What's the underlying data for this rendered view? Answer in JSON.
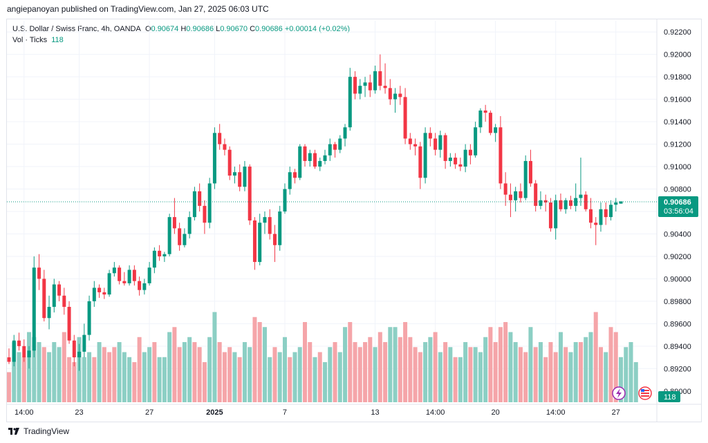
{
  "header": {
    "published": "angiepanoyan published on TradingView.com, Jan 27, 2025 06:03 UTC"
  },
  "legend": {
    "symbol": "U.S. Dollar / Swiss Franc, 4h, OANDA",
    "o_label": "O",
    "o": "0.90674",
    "h_label": "H",
    "h": "0.90686",
    "l_label": "L",
    "l": "0.90670",
    "c_label": "C",
    "c": "0.90686",
    "change": "+0.00014 (+0.02%)",
    "vol_label": "Vol · Ticks",
    "vol_value": "118"
  },
  "price_badge": {
    "price": "0.90686",
    "countdown": "03:56:04"
  },
  "volume_badge": "118",
  "footer": {
    "brand": "TradingView"
  },
  "colors": {
    "up": "#089981",
    "down": "#f23645",
    "up_vol": "#8ccfc4",
    "down_vol": "#f5a5a9",
    "grid": "#f0f3fa",
    "axis_text": "#131722"
  },
  "chart_data": {
    "type": "candlestick",
    "title": "U.S. Dollar / Swiss Franc, 4h, OANDA",
    "ylim": [
      0.889,
      0.923
    ],
    "y_ticks": [
      "0.92200",
      "0.92000",
      "0.91800",
      "0.91600",
      "0.91400",
      "0.91200",
      "0.91000",
      "0.90800",
      "0.90600",
      "0.90400",
      "0.90200",
      "0.90000",
      "0.89800",
      "0.89600",
      "0.89400",
      "0.89200",
      "0.89000"
    ],
    "x_ticks": [
      {
        "label": "14:00",
        "i": 3
      },
      {
        "label": "23",
        "i": 14
      },
      {
        "label": "27",
        "i": 28
      },
      {
        "label": "2025",
        "i": 41
      },
      {
        "label": "7",
        "i": 55
      },
      {
        "label": "13",
        "i": 73
      },
      {
        "label": "14:00",
        "i": 85
      },
      {
        "label": "20",
        "i": 97
      },
      {
        "label": "14:00",
        "i": 109
      },
      {
        "label": "27",
        "i": 121
      }
    ],
    "last_price": 0.90686,
    "ohlc": [
      [
        0.893,
        0.8938,
        0.8924,
        0.8926
      ],
      [
        0.8926,
        0.895,
        0.8922,
        0.8945
      ],
      [
        0.8945,
        0.8952,
        0.8936,
        0.894
      ],
      [
        0.894,
        0.8946,
        0.8926,
        0.893
      ],
      [
        0.893,
        0.894,
        0.892,
        0.8936
      ],
      [
        0.8936,
        0.902,
        0.893,
        0.901
      ],
      [
        0.901,
        0.9022,
        0.899,
        0.9
      ],
      [
        0.9,
        0.9008,
        0.8962,
        0.8965
      ],
      [
        0.8965,
        0.8985,
        0.8955,
        0.8975
      ],
      [
        0.8975,
        0.9,
        0.897,
        0.8995
      ],
      [
        0.8995,
        0.8998,
        0.898,
        0.8985
      ],
      [
        0.8985,
        0.8992,
        0.8968,
        0.8975
      ],
      [
        0.8975,
        0.898,
        0.8942,
        0.8945
      ],
      [
        0.8945,
        0.895,
        0.8922,
        0.893
      ],
      [
        0.893,
        0.8942,
        0.8918,
        0.8935
      ],
      [
        0.8935,
        0.896,
        0.893,
        0.895
      ],
      [
        0.895,
        0.8985,
        0.8945,
        0.898
      ],
      [
        0.898,
        0.8998,
        0.8975,
        0.8992
      ],
      [
        0.8992,
        0.8995,
        0.8983,
        0.8988
      ],
      [
        0.8988,
        0.8992,
        0.8982,
        0.8986
      ],
      [
        0.8986,
        0.9008,
        0.8984,
        0.9005
      ],
      [
        0.9005,
        0.9015,
        0.9002,
        0.901
      ],
      [
        0.901,
        0.9012,
        0.8995,
        0.8998
      ],
      [
        0.8998,
        0.9006,
        0.8994,
        0.8996
      ],
      [
        0.8996,
        0.9012,
        0.8994,
        0.9008
      ],
      [
        0.9008,
        0.9012,
        0.8994,
        0.8998
      ],
      [
        0.8998,
        0.9002,
        0.8985,
        0.899
      ],
      [
        0.899,
        0.9,
        0.8986,
        0.8996
      ],
      [
        0.8996,
        0.9015,
        0.8994,
        0.901
      ],
      [
        0.901,
        0.9028,
        0.9005,
        0.9025
      ],
      [
        0.9025,
        0.903,
        0.9016,
        0.902
      ],
      [
        0.902,
        0.9024,
        0.9015,
        0.9022
      ],
      [
        0.9022,
        0.9058,
        0.902,
        0.9055
      ],
      [
        0.9055,
        0.9072,
        0.904,
        0.9045
      ],
      [
        0.9045,
        0.905,
        0.9025,
        0.903
      ],
      [
        0.903,
        0.9045,
        0.9028,
        0.904
      ],
      [
        0.904,
        0.906,
        0.9036,
        0.9055
      ],
      [
        0.9055,
        0.9082,
        0.9052,
        0.9078
      ],
      [
        0.9078,
        0.9085,
        0.906,
        0.9065
      ],
      [
        0.9065,
        0.907,
        0.904,
        0.905
      ],
      [
        0.905,
        0.909,
        0.9045,
        0.9085
      ],
      [
        0.9085,
        0.9135,
        0.908,
        0.913
      ],
      [
        0.913,
        0.9138,
        0.9115,
        0.912
      ],
      [
        0.912,
        0.9125,
        0.911,
        0.9115
      ],
      [
        0.9115,
        0.9118,
        0.9088,
        0.9092
      ],
      [
        0.9092,
        0.91,
        0.9085,
        0.9095
      ],
      [
        0.9095,
        0.9102,
        0.9078,
        0.9082
      ],
      [
        0.9082,
        0.9105,
        0.9078,
        0.91
      ],
      [
        0.91,
        0.9102,
        0.9048,
        0.9052
      ],
      [
        0.9052,
        0.9055,
        0.9008,
        0.9015
      ],
      [
        0.9015,
        0.9058,
        0.9012,
        0.905
      ],
      [
        0.905,
        0.906,
        0.904,
        0.9055
      ],
      [
        0.9055,
        0.9062,
        0.9035,
        0.904
      ],
      [
        0.904,
        0.9048,
        0.9015,
        0.903
      ],
      [
        0.903,
        0.9065,
        0.9025,
        0.906
      ],
      [
        0.906,
        0.9085,
        0.9058,
        0.908
      ],
      [
        0.908,
        0.91,
        0.9075,
        0.9095
      ],
      [
        0.9095,
        0.9098,
        0.9085,
        0.909
      ],
      [
        0.909,
        0.912,
        0.9088,
        0.9118
      ],
      [
        0.9118,
        0.912,
        0.91,
        0.9105
      ],
      [
        0.9105,
        0.9115,
        0.91,
        0.9112
      ],
      [
        0.9112,
        0.9115,
        0.9098,
        0.91
      ],
      [
        0.91,
        0.9108,
        0.9096,
        0.9105
      ],
      [
        0.9105,
        0.9115,
        0.9102,
        0.911
      ],
      [
        0.911,
        0.9125,
        0.9105,
        0.912
      ],
      [
        0.912,
        0.9122,
        0.9108,
        0.9115
      ],
      [
        0.9115,
        0.9128,
        0.9112,
        0.9125
      ],
      [
        0.9125,
        0.9138,
        0.9118,
        0.9135
      ],
      [
        0.9135,
        0.9188,
        0.9132,
        0.918
      ],
      [
        0.918,
        0.9185,
        0.916,
        0.9165
      ],
      [
        0.9165,
        0.9178,
        0.916,
        0.9172
      ],
      [
        0.9172,
        0.918,
        0.9162,
        0.9175
      ],
      [
        0.9175,
        0.9182,
        0.9162,
        0.9168
      ],
      [
        0.9168,
        0.919,
        0.9165,
        0.9185
      ],
      [
        0.9185,
        0.92,
        0.9168,
        0.9172
      ],
      [
        0.9172,
        0.9192,
        0.9165,
        0.917
      ],
      [
        0.917,
        0.9178,
        0.9155,
        0.916
      ],
      [
        0.916,
        0.917,
        0.9148,
        0.9165
      ],
      [
        0.9165,
        0.9172,
        0.9155,
        0.9162
      ],
      [
        0.9162,
        0.917,
        0.912,
        0.9125
      ],
      [
        0.9125,
        0.913,
        0.9115,
        0.912
      ],
      [
        0.912,
        0.9125,
        0.911,
        0.9118
      ],
      [
        0.9118,
        0.9122,
        0.908,
        0.909
      ],
      [
        0.909,
        0.9135,
        0.9085,
        0.913
      ],
      [
        0.913,
        0.9135,
        0.9118,
        0.9125
      ],
      [
        0.9125,
        0.913,
        0.911,
        0.9115
      ],
      [
        0.9115,
        0.9132,
        0.9108,
        0.9128
      ],
      [
        0.9128,
        0.913,
        0.9098,
        0.9105
      ],
      [
        0.9105,
        0.9112,
        0.91,
        0.9108
      ],
      [
        0.9108,
        0.9112,
        0.9098,
        0.9102
      ],
      [
        0.9102,
        0.9108,
        0.9096,
        0.91
      ],
      [
        0.91,
        0.912,
        0.9095,
        0.9115
      ],
      [
        0.9115,
        0.912,
        0.9102,
        0.911
      ],
      [
        0.911,
        0.914,
        0.9108,
        0.9135
      ],
      [
        0.9135,
        0.9152,
        0.913,
        0.915
      ],
      [
        0.915,
        0.9155,
        0.914,
        0.9148
      ],
      [
        0.9148,
        0.915,
        0.9128,
        0.913
      ],
      [
        0.913,
        0.9138,
        0.9122,
        0.9135
      ],
      [
        0.9135,
        0.9145,
        0.908,
        0.9085
      ],
      [
        0.9085,
        0.9095,
        0.9065,
        0.9075
      ],
      [
        0.9075,
        0.9085,
        0.9055,
        0.907
      ],
      [
        0.907,
        0.9082,
        0.906,
        0.9078
      ],
      [
        0.9078,
        0.9085,
        0.9068,
        0.9072
      ],
      [
        0.9072,
        0.911,
        0.907,
        0.9105
      ],
      [
        0.9105,
        0.9115,
        0.9082,
        0.9085
      ],
      [
        0.9085,
        0.9088,
        0.906,
        0.9065
      ],
      [
        0.9065,
        0.9078,
        0.9062,
        0.907
      ],
      [
        0.907,
        0.9075,
        0.906,
        0.9068
      ],
      [
        0.9068,
        0.9072,
        0.9042,
        0.9045
      ],
      [
        0.9045,
        0.9075,
        0.9035,
        0.907
      ],
      [
        0.907,
        0.9076,
        0.906,
        0.9062
      ],
      [
        0.9062,
        0.9072,
        0.9058,
        0.907
      ],
      [
        0.907,
        0.9074,
        0.9062,
        0.9065
      ],
      [
        0.9065,
        0.9085,
        0.906,
        0.9072
      ],
      [
        0.9072,
        0.9108,
        0.9065,
        0.9075
      ],
      [
        0.9075,
        0.9078,
        0.906,
        0.9062
      ],
      [
        0.9062,
        0.9072,
        0.9045,
        0.905
      ],
      [
        0.905,
        0.9055,
        0.903,
        0.9048
      ],
      [
        0.9048,
        0.9068,
        0.9042,
        0.9062
      ],
      [
        0.9062,
        0.9068,
        0.9048,
        0.9055
      ],
      [
        0.9055,
        0.907,
        0.9052,
        0.9066
      ],
      [
        0.9066,
        0.9072,
        0.906,
        0.9068
      ],
      [
        0.9067,
        0.9069,
        0.9067,
        0.9069
      ]
    ],
    "volume": [
      [
        6,
        0
      ],
      [
        12,
        1
      ],
      [
        10,
        1
      ],
      [
        9,
        0
      ],
      [
        14,
        1
      ],
      [
        13,
        1
      ],
      [
        12,
        1
      ],
      [
        11,
        0
      ],
      [
        10,
        1
      ],
      [
        12,
        1
      ],
      [
        11,
        1
      ],
      [
        14,
        0
      ],
      [
        9,
        0
      ],
      [
        8,
        0
      ],
      [
        13,
        1
      ],
      [
        9,
        1
      ],
      [
        10,
        1
      ],
      [
        9,
        0
      ],
      [
        12,
        1
      ],
      [
        11,
        0
      ],
      [
        10,
        0
      ],
      [
        11,
        0
      ],
      [
        12,
        1
      ],
      [
        10,
        1
      ],
      [
        9,
        1
      ],
      [
        8,
        0
      ],
      [
        13,
        0
      ],
      [
        10,
        1
      ],
      [
        11,
        1
      ],
      [
        12,
        0
      ],
      [
        9,
        1
      ],
      [
        9,
        1
      ],
      [
        14,
        1
      ],
      [
        15,
        0
      ],
      [
        11,
        0
      ],
      [
        12,
        1
      ],
      [
        13,
        1
      ],
      [
        12,
        0
      ],
      [
        11,
        0
      ],
      [
        8,
        0
      ],
      [
        13,
        1
      ],
      [
        18,
        1
      ],
      [
        12,
        0
      ],
      [
        10,
        0
      ],
      [
        11,
        0
      ],
      [
        10,
        1
      ],
      [
        9,
        0
      ],
      [
        12,
        1
      ],
      [
        11,
        1
      ],
      [
        17,
        0
      ],
      [
        16,
        0
      ],
      [
        15,
        1
      ],
      [
        9,
        1
      ],
      [
        11,
        0
      ],
      [
        10,
        1
      ],
      [
        13,
        1
      ],
      [
        9,
        0
      ],
      [
        10,
        1
      ],
      [
        11,
        1
      ],
      [
        16,
        0
      ],
      [
        12,
        0
      ],
      [
        9,
        1
      ],
      [
        10,
        0
      ],
      [
        8,
        1
      ],
      [
        11,
        1
      ],
      [
        12,
        0
      ],
      [
        10,
        1
      ],
      [
        15,
        1
      ],
      [
        16,
        0
      ],
      [
        12,
        0
      ],
      [
        11,
        0
      ],
      [
        12,
        0
      ],
      [
        13,
        0
      ],
      [
        11,
        1
      ],
      [
        14,
        0
      ],
      [
        12,
        0
      ],
      [
        15,
        1
      ],
      [
        15,
        1
      ],
      [
        13,
        0
      ],
      [
        16,
        0
      ],
      [
        13,
        0
      ],
      [
        11,
        0
      ],
      [
        10,
        0
      ],
      [
        12,
        1
      ],
      [
        13,
        1
      ],
      [
        14,
        0
      ],
      [
        10,
        1
      ],
      [
        12,
        0
      ],
      [
        11,
        1
      ],
      [
        9,
        0
      ],
      [
        9,
        1
      ],
      [
        12,
        1
      ],
      [
        11,
        0
      ],
      [
        11,
        1
      ],
      [
        10,
        1
      ],
      [
        13,
        1
      ],
      [
        15,
        0
      ],
      [
        12,
        0
      ],
      [
        15,
        0
      ],
      [
        16,
        0
      ],
      [
        14,
        1
      ],
      [
        12,
        1
      ],
      [
        11,
        0
      ],
      [
        10,
        0
      ],
      [
        15,
        1
      ],
      [
        11,
        0
      ],
      [
        12,
        1
      ],
      [
        9,
        0
      ],
      [
        12,
        0
      ],
      [
        10,
        0
      ],
      [
        14,
        1
      ],
      [
        11,
        0
      ],
      [
        10,
        1
      ],
      [
        12,
        1
      ],
      [
        12,
        0
      ],
      [
        13,
        1
      ],
      [
        14,
        1
      ],
      [
        18,
        0
      ],
      [
        11,
        0
      ],
      [
        10,
        1
      ],
      [
        15,
        0
      ],
      [
        14,
        0
      ],
      [
        9,
        1
      ],
      [
        11,
        1
      ],
      [
        12,
        1
      ],
      [
        8,
        1
      ]
    ]
  }
}
